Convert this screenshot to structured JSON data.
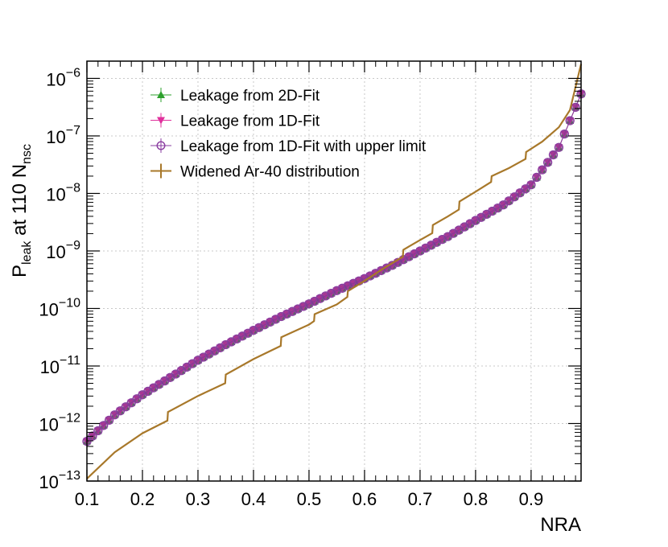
{
  "chart_data": {
    "type": "line",
    "title": "",
    "xlabel": "NRA",
    "ylabel": {
      "base": "P",
      "sub1": "leak",
      "mid": " at 110 N",
      "sub2": "nsc"
    },
    "xlim": [
      0.1,
      0.99
    ],
    "ylim_log10": [
      -13,
      -5.7
    ],
    "yscale": "log",
    "grid": true,
    "legend_position": "top-left",
    "x_ticks": [
      "0.1",
      "0.2",
      "0.3",
      "0.4",
      "0.5",
      "0.6",
      "0.7",
      "0.8",
      "0.9"
    ],
    "x_tick_values": [
      0.1,
      0.2,
      0.3,
      0.4,
      0.5,
      0.6,
      0.7,
      0.8,
      0.9
    ],
    "y_ticks": [
      {
        "exp": -13,
        "base": "10",
        "sup": "−13"
      },
      {
        "exp": -12,
        "base": "10",
        "sup": "−12"
      },
      {
        "exp": -11,
        "base": "10",
        "sup": "−11"
      },
      {
        "exp": -10,
        "base": "10",
        "sup": "−10"
      },
      {
        "exp": -9,
        "base": "10",
        "sup": "−9"
      },
      {
        "exp": -8,
        "base": "10",
        "sup": "−8"
      },
      {
        "exp": -7,
        "base": "10",
        "sup": "−7"
      },
      {
        "exp": -6,
        "base": "10",
        "sup": "−6"
      }
    ],
    "series": [
      {
        "name": "Leakage from 2D-Fit",
        "color": "#2ca02c",
        "marker": "triangle-up",
        "x": [
          0.1,
          0.15,
          0.2,
          0.25,
          0.3,
          0.35,
          0.4,
          0.45,
          0.5,
          0.55,
          0.6,
          0.65,
          0.7,
          0.75,
          0.8,
          0.85,
          0.9,
          0.95,
          0.99
        ],
        "log10_y": [
          -12.31,
          -11.85,
          -11.5,
          -11.2,
          -10.9,
          -10.63,
          -10.38,
          -10.14,
          -9.92,
          -9.69,
          -9.48,
          -9.25,
          -9.0,
          -8.75,
          -8.47,
          -8.2,
          -7.85,
          -7.2,
          -6.27
        ]
      },
      {
        "name": "Leakage from 1D-Fit",
        "color": "#e0309c",
        "marker": "triangle-down",
        "x": [
          0.1,
          0.15,
          0.2,
          0.25,
          0.3,
          0.35,
          0.4,
          0.45,
          0.5,
          0.55,
          0.6,
          0.65,
          0.7,
          0.75,
          0.8,
          0.85,
          0.9,
          0.95,
          0.99
        ],
        "log10_y": [
          -12.31,
          -11.85,
          -11.5,
          -11.2,
          -10.9,
          -10.63,
          -10.38,
          -10.14,
          -9.92,
          -9.69,
          -9.48,
          -9.25,
          -9.0,
          -8.75,
          -8.47,
          -8.2,
          -7.85,
          -7.2,
          -6.27
        ]
      },
      {
        "name": "Leakage from 1D-Fit with upper limit",
        "color": "#8a3ca0",
        "marker": "circle-open",
        "x": [
          0.1,
          0.15,
          0.2,
          0.25,
          0.3,
          0.35,
          0.4,
          0.45,
          0.5,
          0.55,
          0.6,
          0.65,
          0.7,
          0.75,
          0.8,
          0.85,
          0.9,
          0.95,
          0.99
        ],
        "log10_y": [
          -12.31,
          -11.85,
          -11.5,
          -11.2,
          -10.9,
          -10.63,
          -10.38,
          -10.14,
          -9.92,
          -9.69,
          -9.48,
          -9.25,
          -9.0,
          -8.75,
          -8.47,
          -8.2,
          -7.85,
          -7.2,
          -6.27
        ]
      },
      {
        "name": "Widened Ar-40 distribution",
        "color": "#a8782a",
        "marker": "cross",
        "x": [
          0.1,
          0.15,
          0.2,
          0.245,
          0.246,
          0.3,
          0.349,
          0.35,
          0.4,
          0.449,
          0.45,
          0.5,
          0.509,
          0.51,
          0.55,
          0.569,
          0.57,
          0.6,
          0.63,
          0.669,
          0.67,
          0.7,
          0.722,
          0.723,
          0.75,
          0.77,
          0.771,
          0.8,
          0.828,
          0.829,
          0.86,
          0.89,
          0.891,
          0.92,
          0.95,
          0.97,
          0.99
        ],
        "log10_y": [
          -12.96,
          -12.5,
          -12.17,
          -11.95,
          -11.8,
          -11.52,
          -11.3,
          -11.15,
          -10.88,
          -10.65,
          -10.5,
          -10.28,
          -10.22,
          -10.1,
          -9.93,
          -9.8,
          -9.7,
          -9.52,
          -9.33,
          -9.1,
          -8.98,
          -8.81,
          -8.69,
          -8.55,
          -8.4,
          -8.28,
          -8.14,
          -7.97,
          -7.8,
          -7.7,
          -7.56,
          -7.4,
          -7.28,
          -7.1,
          -6.85,
          -6.55,
          -5.75
        ]
      }
    ]
  }
}
